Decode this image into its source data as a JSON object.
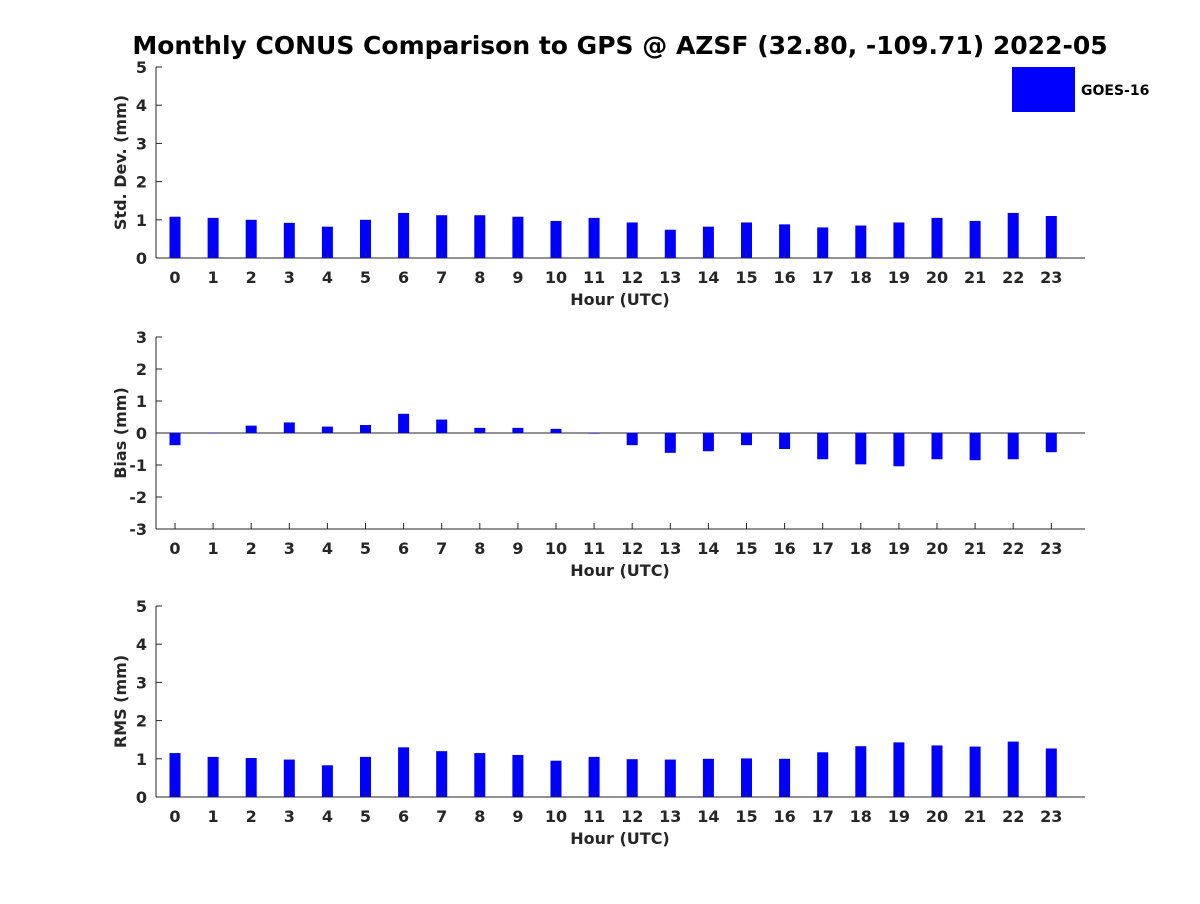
{
  "chart_data": {
    "type": "bar",
    "title": "Monthly CONUS Comparison to GPS @ AZSF (32.80, -109.71) 2022-05",
    "categories": [
      "0",
      "1",
      "2",
      "3",
      "4",
      "5",
      "6",
      "7",
      "8",
      "9",
      "10",
      "11",
      "12",
      "13",
      "14",
      "15",
      "16",
      "17",
      "18",
      "19",
      "20",
      "21",
      "22",
      "23"
    ],
    "legend": {
      "entries": [
        "GOES-16"
      ],
      "placement": "top-right"
    },
    "colors": {
      "bar": "#0000ff",
      "axis": "#262626",
      "title": "#000000"
    },
    "panels": [
      {
        "xlabel": "Hour (UTC)",
        "ylabel": "Std. Dev. (mm)",
        "ylim": [
          0,
          5
        ],
        "yticks": [
          "0",
          "1",
          "2",
          "3",
          "4",
          "5"
        ],
        "zero_line": false,
        "series": [
          {
            "name": "GOES-16",
            "values": [
              1.08,
              1.05,
              1.0,
              0.92,
              0.82,
              1.0,
              1.18,
              1.12,
              1.12,
              1.08,
              0.97,
              1.05,
              0.93,
              0.74,
              0.82,
              0.93,
              0.88,
              0.8,
              0.85,
              0.93,
              1.05,
              0.97,
              1.18,
              1.1
            ]
          }
        ]
      },
      {
        "xlabel": "Hour (UTC)",
        "ylabel": "Bias (mm)",
        "ylim": [
          -3,
          3
        ],
        "yticks": [
          "-3",
          "-2",
          "-1",
          "0",
          "1",
          "2",
          "3"
        ],
        "zero_line": true,
        "series": [
          {
            "name": "GOES-16",
            "values": [
              -0.38,
              0.0,
              0.23,
              0.33,
              0.2,
              0.25,
              0.6,
              0.42,
              0.16,
              0.16,
              0.13,
              -0.02,
              -0.38,
              -0.62,
              -0.57,
              -0.38,
              -0.5,
              -0.82,
              -0.98,
              -1.04,
              -0.82,
              -0.85,
              -0.82,
              -0.6
            ]
          }
        ]
      },
      {
        "xlabel": "Hour (UTC)",
        "ylabel": "RMS (mm)",
        "ylim": [
          0,
          5
        ],
        "yticks": [
          "0",
          "1",
          "2",
          "3",
          "4",
          "5"
        ],
        "zero_line": false,
        "series": [
          {
            "name": "GOES-16",
            "values": [
              1.15,
              1.05,
              1.02,
              0.98,
              0.83,
              1.05,
              1.3,
              1.2,
              1.15,
              1.1,
              0.95,
              1.05,
              0.99,
              0.98,
              1.0,
              1.01,
              1.0,
              1.17,
              1.33,
              1.43,
              1.35,
              1.32,
              1.45,
              1.27
            ]
          }
        ]
      }
    ]
  }
}
